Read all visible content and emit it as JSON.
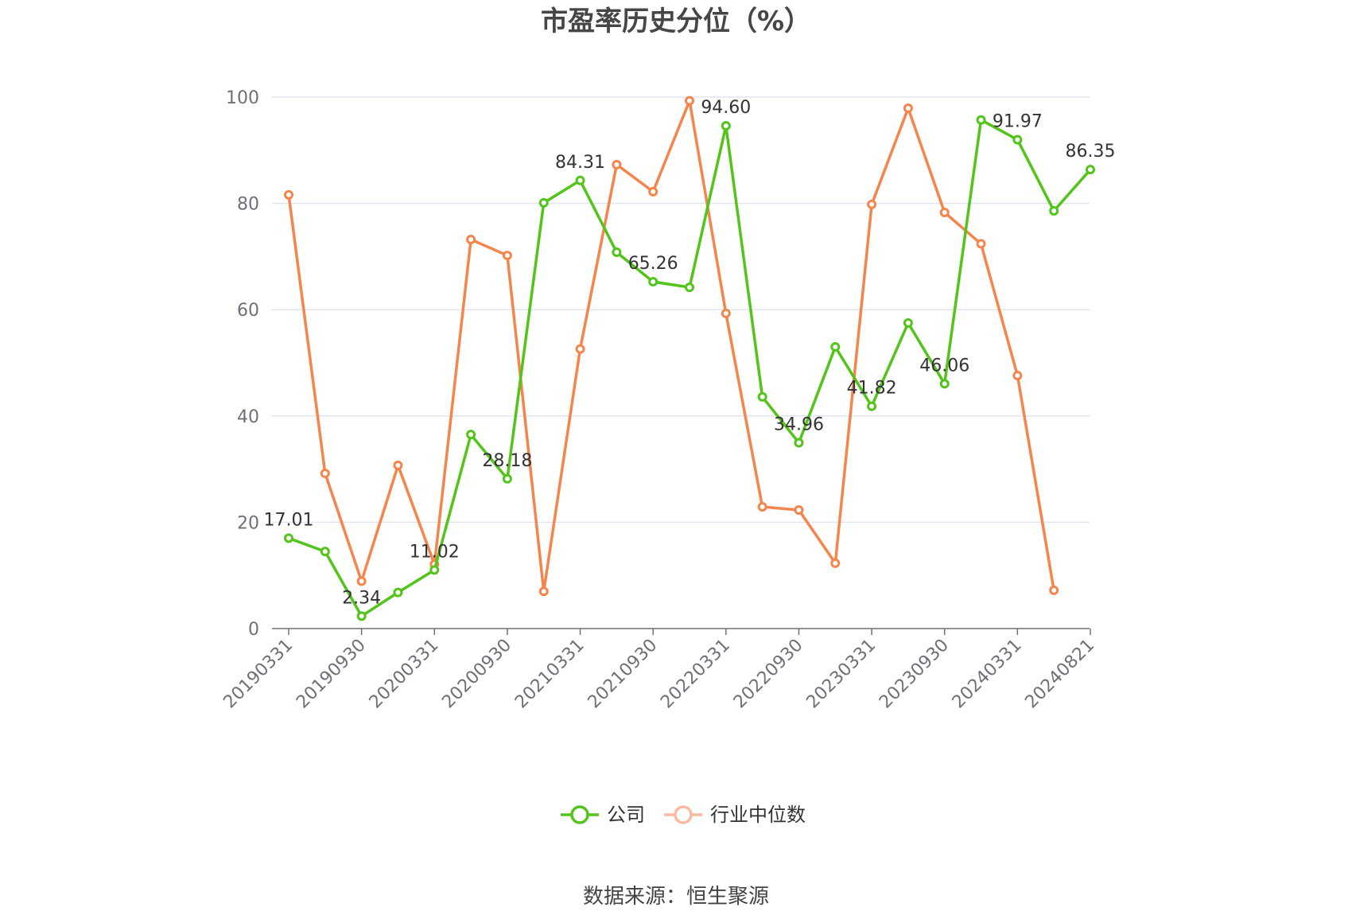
{
  "chart_data": {
    "type": "line",
    "title": "市盈率历史分位（%）",
    "xlabel": "",
    "ylabel": "",
    "ylim": [
      0,
      100
    ],
    "yticks": [
      0,
      20,
      40,
      60,
      80,
      100
    ],
    "x": [
      "20190331",
      "20190630",
      "20190930",
      "20191231",
      "20200331",
      "20200630",
      "20200930",
      "20201231",
      "20210331",
      "20210630",
      "20210930",
      "20211231",
      "20220331",
      "20220630",
      "20220930",
      "20221231",
      "20230331",
      "20230630",
      "20230930",
      "20231231",
      "20240331",
      "20240630",
      "20240821"
    ],
    "xticks_shown": [
      "20190331",
      "20190930",
      "20200331",
      "20200930",
      "20210331",
      "20210930",
      "20220331",
      "20220930",
      "20230331",
      "20230930",
      "20240331",
      "20240821"
    ],
    "grid": true,
    "legend_position": "bottom",
    "series": [
      {
        "name": "公司",
        "color": "#52c41a",
        "values": [
          17.01,
          14.5,
          2.34,
          6.8,
          11.02,
          36.5,
          28.18,
          80.1,
          84.31,
          70.8,
          65.26,
          64.2,
          94.6,
          43.6,
          34.96,
          53.0,
          41.82,
          57.5,
          46.06,
          95.7,
          91.97,
          78.6,
          86.35
        ],
        "labels": [
          "17.01",
          "",
          "2.34",
          "",
          "11.02",
          "",
          "28.18",
          "",
          "84.31",
          "",
          "65.26",
          "",
          "94.60",
          "",
          "34.96",
          "",
          "41.82",
          "",
          "46.06",
          "",
          "91.97",
          "",
          "86.35"
        ]
      },
      {
        "name": "行业中位数",
        "color": "#f4854d",
        "values": [
          81.6,
          29.2,
          8.9,
          30.7,
          12.1,
          73.2,
          70.2,
          7.0,
          52.6,
          87.3,
          82.2,
          99.3,
          59.3,
          22.9,
          22.3,
          12.3,
          79.8,
          97.9,
          78.3,
          72.4,
          47.6,
          7.2,
          null
        ],
        "labels": []
      }
    ]
  },
  "source": "数据来源：恒生聚源"
}
